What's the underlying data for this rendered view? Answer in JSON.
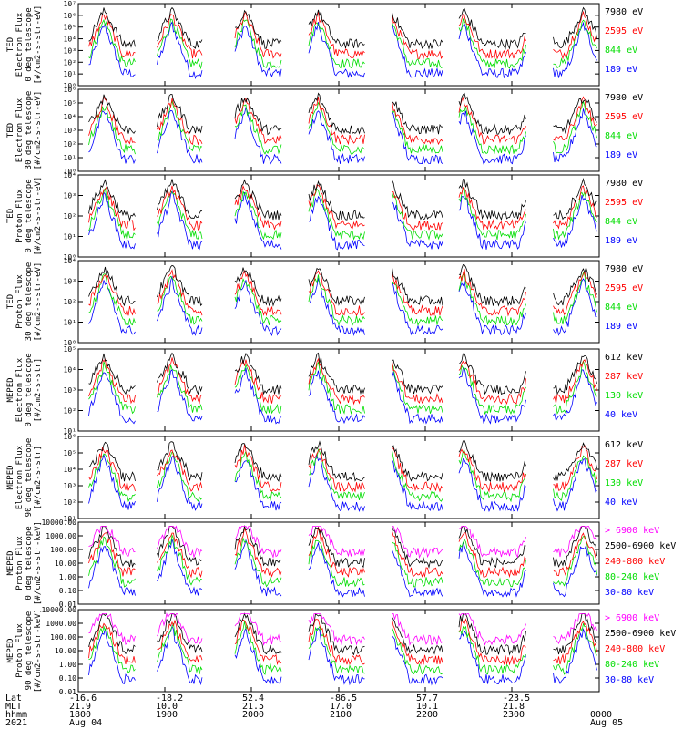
{
  "chart_data": {
    "type": "line",
    "x_labels": {
      "rows": [
        {
          "name": "Lat",
          "values": [
            "-16.6",
            "-18.2",
            "52.4",
            "-86.5",
            "57.7",
            "-23.5",
            ""
          ]
        },
        {
          "name": "MLT",
          "values": [
            "21.9",
            "10.0",
            "21.5",
            "17.0",
            "10.1",
            "21.8",
            ""
          ]
        },
        {
          "name": "hhmm",
          "values": [
            "1800",
            "1900",
            "2000",
            "2100",
            "2200",
            "2300",
            "0000"
          ]
        },
        {
          "name": "2021",
          "values": [
            "Aug 04",
            "",
            "",
            "",
            "",
            "",
            "Aug 05"
          ]
        }
      ]
    },
    "panels": [
      {
        "ylabel": [
          "TED",
          "Electron Flux",
          "0 deg telescope",
          "[#/cm2-s-str-eV]"
        ],
        "scale": "log",
        "ylim_exp": [
          0,
          7
        ],
        "yticks": [
          "10⁰",
          "10¹",
          "10²",
          "10³",
          "10⁴",
          "10⁵",
          "10⁶",
          "10⁷"
        ],
        "legend": [
          {
            "label": "7980 eV",
            "color": "#000000"
          },
          {
            "label": "2595 eV",
            "color": "#ff0000"
          },
          {
            "label": "844 eV",
            "color": "#00dd00"
          },
          {
            "label": "189 eV",
            "color": "#0000ff"
          }
        ]
      },
      {
        "ylabel": [
          "TED",
          "Electron Flux",
          "30 deg telescope",
          "[#/cm2-s-str-eV]"
        ],
        "scale": "log",
        "ylim_exp": [
          0,
          6
        ],
        "yticks": [
          "10⁰",
          "10¹",
          "10²",
          "10³",
          "10⁴",
          "10⁵",
          "10⁶"
        ],
        "legend": [
          {
            "label": "7980 eV",
            "color": "#000000"
          },
          {
            "label": "2595 eV",
            "color": "#ff0000"
          },
          {
            "label": "844 eV",
            "color": "#00dd00"
          },
          {
            "label": "189 eV",
            "color": "#0000ff"
          }
        ]
      },
      {
        "ylabel": [
          "TED",
          "Proton Flux",
          "0 deg telescope",
          "[#/cm2-s-str-eV]"
        ],
        "scale": "log",
        "ylim_exp": [
          0,
          4
        ],
        "yticks": [
          "10⁰",
          "10¹",
          "10²",
          "10³",
          "10⁴"
        ],
        "legend": [
          {
            "label": "7980 eV",
            "color": "#000000"
          },
          {
            "label": "2595 eV",
            "color": "#ff0000"
          },
          {
            "label": "844 eV",
            "color": "#00dd00"
          },
          {
            "label": "189 eV",
            "color": "#0000ff"
          }
        ]
      },
      {
        "ylabel": [
          "TED",
          "Proton Flux",
          "30 deg telescope",
          "[#/cm2-s-str-eV]"
        ],
        "scale": "log",
        "ylim_exp": [
          0,
          4
        ],
        "yticks": [
          "10⁰",
          "10¹",
          "10²",
          "10³",
          "10⁴"
        ],
        "legend": [
          {
            "label": "7980 eV",
            "color": "#000000"
          },
          {
            "label": "2595 eV",
            "color": "#ff0000"
          },
          {
            "label": "844 eV",
            "color": "#00dd00"
          },
          {
            "label": "189 eV",
            "color": "#0000ff"
          }
        ]
      },
      {
        "ylabel": [
          "MEPED",
          "Electron Flux",
          "0 deg telescope",
          "[#/cm2-s-str]"
        ],
        "scale": "log",
        "ylim_exp": [
          1,
          5
        ],
        "yticks": [
          "10¹",
          "10²",
          "10³",
          "10⁴",
          "10⁵"
        ],
        "legend": [
          {
            "label": "612 keV",
            "color": "#000000"
          },
          {
            "label": "287 keV",
            "color": "#ff0000"
          },
          {
            "label": "130 keV",
            "color": "#00dd00"
          },
          {
            "label": "40 keV",
            "color": "#0000ff"
          }
        ]
      },
      {
        "ylabel": [
          "MEPED",
          "Electron Flux",
          "90 deg telescope",
          "[#/cm2-s-str]"
        ],
        "scale": "log",
        "ylim_exp": [
          1,
          6
        ],
        "yticks": [
          "10¹",
          "10²",
          "10³",
          "10⁴",
          "10⁵",
          "10⁶"
        ],
        "legend": [
          {
            "label": "612 keV",
            "color": "#000000"
          },
          {
            "label": "287 keV",
            "color": "#ff0000"
          },
          {
            "label": "130 keV",
            "color": "#00dd00"
          },
          {
            "label": "40 keV",
            "color": "#0000ff"
          }
        ]
      },
      {
        "ylabel": [
          "MEPED",
          "Proton Flux",
          "0 deg telescope",
          "[#/cm2-s-str-keV]"
        ],
        "scale": "log",
        "ylim_exp": [
          -2,
          4
        ],
        "yticks": [
          "0.01",
          "0.10",
          "1.00",
          "10.00",
          "100.00",
          "1000.00",
          "10000.00"
        ],
        "legend": [
          {
            "label": "> 6900 keV",
            "color": "#ff00ff"
          },
          {
            "label": "2500-6900 keV",
            "color": "#000000"
          },
          {
            "label": "240-800 keV",
            "color": "#ff0000"
          },
          {
            "label": "80-240 keV",
            "color": "#00dd00"
          },
          {
            "label": "30-80 keV",
            "color": "#0000ff"
          }
        ]
      },
      {
        "ylabel": [
          "MEPED",
          "Proton Flux",
          "90 deg telescope",
          "[#/cm2-s-str-keV]"
        ],
        "scale": "log",
        "ylim_exp": [
          -2,
          4
        ],
        "yticks": [
          "0.01",
          "0.10",
          "1.00",
          "10.00",
          "100.00",
          "1000.00",
          "10000.00"
        ],
        "legend": [
          {
            "label": "> 6900 keV",
            "color": "#ff00ff"
          },
          {
            "label": "2500-6900 keV",
            "color": "#000000"
          },
          {
            "label": "240-800 keV",
            "color": "#ff0000"
          },
          {
            "label": "80-240 keV",
            "color": "#00dd00"
          },
          {
            "label": "30-80 keV",
            "color": "#0000ff"
          }
        ]
      }
    ]
  }
}
